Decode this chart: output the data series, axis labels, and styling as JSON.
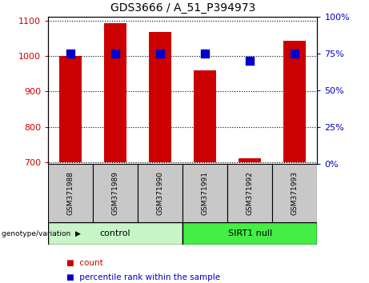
{
  "title": "GDS3666 / A_51_P394973",
  "samples": [
    "GSM371988",
    "GSM371989",
    "GSM371990",
    "GSM371991",
    "GSM371992",
    "GSM371993"
  ],
  "counts": [
    1000,
    1092,
    1068,
    960,
    712,
    1042
  ],
  "percentiles": [
    75,
    75,
    75,
    75,
    70,
    75
  ],
  "ylim_left": [
    695,
    1110
  ],
  "ylim_right": [
    0,
    100
  ],
  "yticks_left": [
    700,
    800,
    900,
    1000,
    1100
  ],
  "yticks_right": [
    0,
    25,
    50,
    75,
    100
  ],
  "baseline": 700,
  "groups": [
    {
      "label": "control",
      "indices": [
        0,
        1,
        2
      ]
    },
    {
      "label": "SIRT1 null",
      "indices": [
        3,
        4,
        5
      ]
    }
  ],
  "group_colors": [
    "#c8f5c8",
    "#44ee44"
  ],
  "bar_color": "#CC0000",
  "dot_color": "#0000CC",
  "tick_color_left": "#CC0000",
  "tick_color_right": "#0000CC",
  "bg_xtick": "#C8C8C8",
  "bar_width": 0.5,
  "dot_size": 50,
  "group_label": "genotype/variation"
}
